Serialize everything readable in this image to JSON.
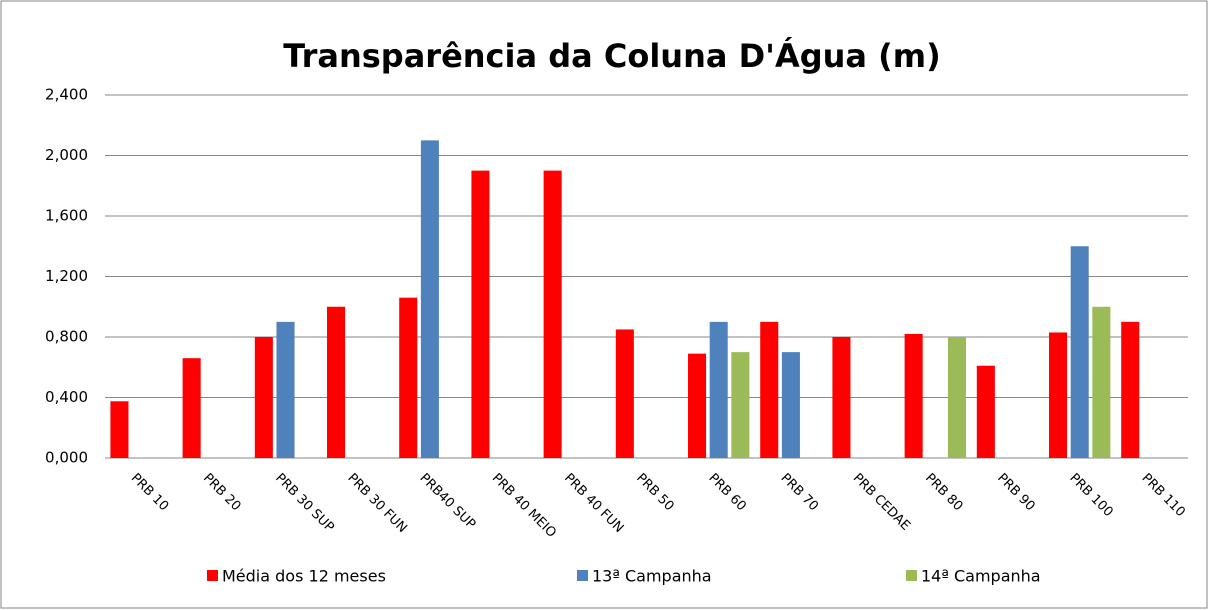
{
  "chart_data": {
    "type": "bar",
    "title": "Transparência da Coluna D'Água (m)",
    "categories": [
      "PRB 10",
      "PRB 20",
      "PRB 30 SUP",
      "PRB 30 FUN",
      "PRB40 SUP",
      "PRB 40 MEIO",
      "PRB 40 FUN",
      "PRB 50",
      "PRB 60",
      "PRB 70",
      "PRB CEDAE",
      "PRB 80",
      "PRB 90",
      "PRB 100",
      "PRB 110"
    ],
    "series": [
      {
        "name": "Média dos 12 meses",
        "color": "#ff0000",
        "values": [
          0.375,
          0.66,
          0.8,
          1.0,
          1.06,
          1.9,
          1.9,
          0.85,
          0.69,
          0.9,
          0.8,
          0.82,
          0.61,
          0.83,
          0.9
        ]
      },
      {
        "name": "13ª Campanha",
        "color": "#4f81bd",
        "values": [
          null,
          null,
          0.9,
          null,
          2.1,
          null,
          null,
          null,
          0.9,
          0.7,
          null,
          null,
          null,
          1.4,
          null
        ]
      },
      {
        "name": "14ª Campanha",
        "color": "#9bbb59",
        "values": [
          null,
          null,
          null,
          null,
          null,
          null,
          null,
          null,
          0.7,
          null,
          null,
          0.8,
          null,
          1.0,
          null
        ]
      }
    ],
    "ylim": [
      0,
      2.4
    ],
    "yticks": [
      {
        "value": 0,
        "label": "0,000"
      },
      {
        "value": 0.4,
        "label": "0,400"
      },
      {
        "value": 0.8,
        "label": "0,800"
      },
      {
        "value": 1.2,
        "label": "1,200"
      },
      {
        "value": 1.6,
        "label": "1,600"
      },
      {
        "value": 2.0,
        "label": "2,000"
      },
      {
        "value": 2.4,
        "label": "2,400"
      }
    ],
    "grid": true,
    "legend": "bottom"
  }
}
